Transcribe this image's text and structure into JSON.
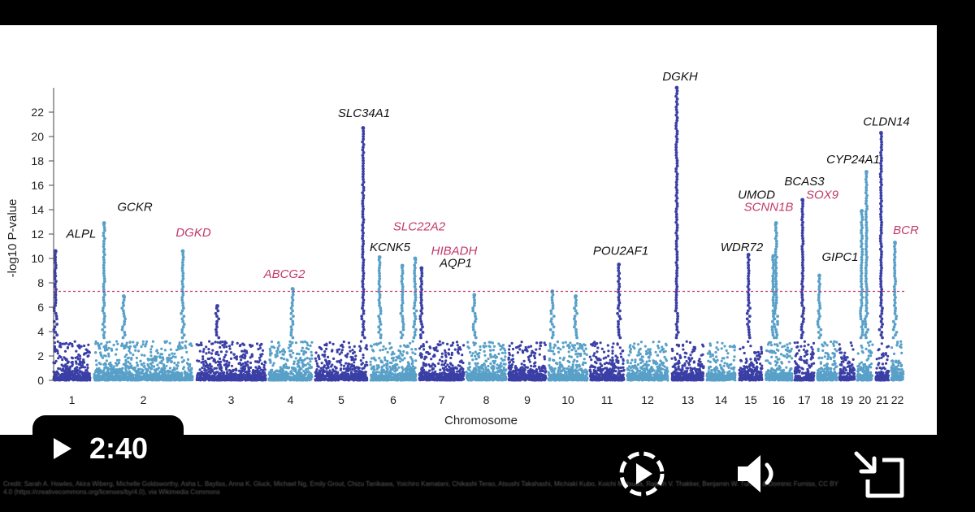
{
  "player": {
    "time": "2:40",
    "credit": "Credit: Sarah A. Howles, Akira Wiberg, Michelle Goldsworthy, Asha L. Bayliss, Anna K. Gluck, Michael Ng, Emily Grout, Chizu Tanikawa, Yoichiro Kamatani, Chikashi Terao, Atsushi Takahashi, Michiaki Kubo, Koichi Matsuda, Rajesh V. Thakker, Benjamin W. Turney & Dominic Furniss, CC BY 4.0 (https://creativecommons.org/licenses/by/4.0), via Wikimedia Commons",
    "icons": [
      "play-icon",
      "replay-icon",
      "volume-icon",
      "exit-fullscreen-icon"
    ]
  },
  "chart_data": {
    "type": "scatter",
    "title": "",
    "xlabel": "Chromosome",
    "ylabel": "-log10 P-value",
    "ylim": [
      0,
      24
    ],
    "yticks": [
      0,
      2,
      4,
      6,
      8,
      10,
      12,
      14,
      16,
      18,
      20,
      22
    ],
    "significance_threshold": 7.3,
    "colors": {
      "dark": "#3a3fa6",
      "light": "#58a0c8",
      "highlight": "#c1396b",
      "text": "#111111",
      "threshold": "#c1396b"
    },
    "chromosomes": [
      "1",
      "2",
      "3",
      "4",
      "5",
      "6",
      "7",
      "8",
      "9",
      "10",
      "11",
      "12",
      "13",
      "14",
      "15",
      "16",
      "17",
      "18",
      "19",
      "20",
      "21",
      "22"
    ],
    "peaks": [
      {
        "chr": "1",
        "pos": 0.05,
        "value": 10.6
      },
      {
        "chr": "2",
        "pos": 0.1,
        "value": 12.9
      },
      {
        "chr": "2",
        "pos": 0.3,
        "value": 6.9
      },
      {
        "chr": "2",
        "pos": 0.9,
        "value": 10.6
      },
      {
        "chr": "3",
        "pos": 0.3,
        "value": 6.1
      },
      {
        "chr": "4",
        "pos": 0.55,
        "value": 7.5
      },
      {
        "chr": "5",
        "pos": 0.92,
        "value": 20.7
      },
      {
        "chr": "6",
        "pos": 0.2,
        "value": 10.1
      },
      {
        "chr": "6",
        "pos": 0.7,
        "value": 9.4
      },
      {
        "chr": "6",
        "pos": 0.98,
        "value": 10.0
      },
      {
        "chr": "7",
        "pos": 0.05,
        "value": 9.2
      },
      {
        "chr": "8",
        "pos": 0.2,
        "value": 7.0
      },
      {
        "chr": "10",
        "pos": 0.1,
        "value": 7.3
      },
      {
        "chr": "10",
        "pos": 0.7,
        "value": 6.9
      },
      {
        "chr": "11",
        "pos": 0.85,
        "value": 9.5
      },
      {
        "chr": "13",
        "pos": 0.15,
        "value": 24.0
      },
      {
        "chr": "15",
        "pos": 0.4,
        "value": 10.3
      },
      {
        "chr": "16",
        "pos": 0.4,
        "value": 12.9
      },
      {
        "chr": "16",
        "pos": 0.3,
        "value": 10.2
      },
      {
        "chr": "17",
        "pos": 0.4,
        "value": 14.8
      },
      {
        "chr": "18",
        "pos": 0.1,
        "value": 8.6
      },
      {
        "chr": "20",
        "pos": 0.3,
        "value": 13.9
      },
      {
        "chr": "20",
        "pos": 0.6,
        "value": 17.1
      },
      {
        "chr": "21",
        "pos": 0.4,
        "value": 20.3
      },
      {
        "chr": "22",
        "pos": 0.3,
        "value": 11.3
      }
    ],
    "gene_labels": [
      {
        "gene": "ALPL",
        "chr": "1",
        "value": 11.7,
        "color": "text"
      },
      {
        "gene": "GCKR",
        "chr": "2",
        "value": 13.9,
        "color": "text"
      },
      {
        "gene": "DGKD",
        "chr": "2",
        "value": 11.8,
        "color": "highlight"
      },
      {
        "gene": "ABCG2",
        "chr": "4",
        "value": 8.4,
        "color": "highlight"
      },
      {
        "gene": "SLC34A1",
        "chr": "5",
        "value": 21.6,
        "color": "text"
      },
      {
        "gene": "KCNK5",
        "chr": "6",
        "value": 10.6,
        "color": "text"
      },
      {
        "gene": "SLC22A2",
        "chr": "6",
        "value": 12.3,
        "color": "highlight"
      },
      {
        "gene": "HIBADH",
        "chr": "7",
        "value": 10.3,
        "color": "highlight"
      },
      {
        "gene": "AQP1",
        "chr": "7",
        "value": 9.3,
        "color": "text"
      },
      {
        "gene": "POU2AF1",
        "chr": "11",
        "value": 10.3,
        "color": "text"
      },
      {
        "gene": "DGKH",
        "chr": "13",
        "value": 24.6,
        "color": "text"
      },
      {
        "gene": "WDR72",
        "chr": "15",
        "value": 10.6,
        "color": "text"
      },
      {
        "gene": "UMOD",
        "chr": "16",
        "value": 14.9,
        "color": "text"
      },
      {
        "gene": "SCNN1B",
        "chr": "16",
        "value": 13.9,
        "color": "highlight"
      },
      {
        "gene": "BCAS3",
        "chr": "17",
        "value": 16.0,
        "color": "text"
      },
      {
        "gene": "SOX9",
        "chr": "17",
        "value": 14.9,
        "color": "highlight"
      },
      {
        "gene": "GIPC1",
        "chr": "19",
        "value": 9.8,
        "color": "text"
      },
      {
        "gene": "CYP24A1",
        "chr": "20",
        "value": 17.8,
        "color": "text"
      },
      {
        "gene": "CLDN14",
        "chr": "21",
        "value": 20.9,
        "color": "text"
      },
      {
        "gene": "BCR",
        "chr": "22",
        "value": 12.0,
        "color": "highlight"
      }
    ]
  }
}
